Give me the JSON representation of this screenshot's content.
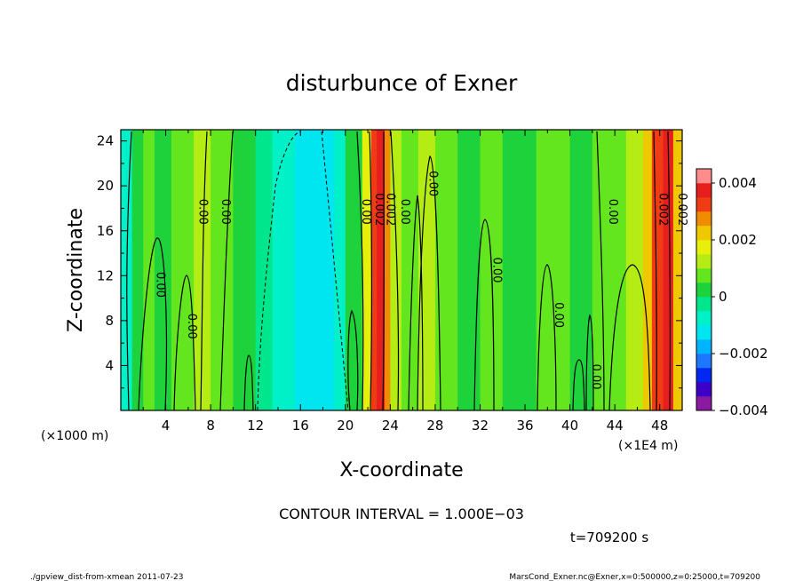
{
  "chart_data": {
    "type": "heatmap",
    "title": "disturbunce of Exner",
    "xlabel": "X-coordinate",
    "ylabel": "Z-coordinate",
    "x_unit_label": "(×1000 m)",
    "x_unit_label_right": "(×1E4 m)",
    "xlim": [
      0,
      50
    ],
    "ylim": [
      0,
      25
    ],
    "x_ticks": [
      "4",
      "8",
      "12",
      "16",
      "20",
      "24",
      "28",
      "32",
      "36",
      "40",
      "44",
      "48"
    ],
    "y_ticks": [
      "4",
      "8",
      "12",
      "16",
      "20",
      "24"
    ],
    "colorbar": {
      "ticks": [
        "0.004",
        "0.002",
        "0",
        "−0.002",
        "−0.004"
      ],
      "tick_values": [
        0.004,
        0.002,
        0,
        -0.002,
        -0.004
      ],
      "levels": [
        {
          "min": -0.004,
          "max": -0.0035,
          "color": "#8c1aa0"
        },
        {
          "min": -0.0035,
          "max": -0.003,
          "color": "#3d00c8"
        },
        {
          "min": -0.003,
          "max": -0.0025,
          "color": "#0028f0"
        },
        {
          "min": -0.0025,
          "max": -0.002,
          "color": "#1e78ff"
        },
        {
          "min": -0.002,
          "max": -0.0015,
          "color": "#00b4ff"
        },
        {
          "min": -0.0015,
          "max": -0.001,
          "color": "#00e6f0"
        },
        {
          "min": -0.001,
          "max": -0.0005,
          "color": "#00f0c8"
        },
        {
          "min": -0.0005,
          "max": 0.0,
          "color": "#00e68c"
        },
        {
          "min": 0.0,
          "max": 0.0005,
          "color": "#1ed23c"
        },
        {
          "min": 0.0005,
          "max": 0.001,
          "color": "#64e61e"
        },
        {
          "min": 0.001,
          "max": 0.0015,
          "color": "#b4ec14"
        },
        {
          "min": 0.0015,
          "max": 0.002,
          "color": "#e6f00a"
        },
        {
          "min": 0.002,
          "max": 0.0025,
          "color": "#f0c800"
        },
        {
          "min": 0.0025,
          "max": 0.003,
          "color": "#f08c00"
        },
        {
          "min": 0.003,
          "max": 0.0035,
          "color": "#f03c14"
        },
        {
          "min": 0.0035,
          "max": 0.004,
          "color": "#e61e1e"
        },
        {
          "min": 0.004,
          "max": 0.0045,
          "color": "#ff8c8c"
        }
      ]
    },
    "columns": [
      {
        "x0": 0.0,
        "x1": 1.0,
        "value": -0.0007
      },
      {
        "x0": 1.0,
        "x1": 2.0,
        "value": 0.0002
      },
      {
        "x0": 2.0,
        "x1": 3.0,
        "value": 0.0006
      },
      {
        "x0": 3.0,
        "x1": 4.5,
        "value": 0.0002
      },
      {
        "x0": 4.5,
        "x1": 6.5,
        "value": 0.0007
      },
      {
        "x0": 6.5,
        "x1": 8.0,
        "value": 0.0013
      },
      {
        "x0": 8.0,
        "x1": 10.0,
        "value": 0.0006
      },
      {
        "x0": 10.0,
        "x1": 12.0,
        "value": 0.0002
      },
      {
        "x0": 12.0,
        "x1": 13.5,
        "value": -0.0003
      },
      {
        "x0": 13.5,
        "x1": 15.5,
        "value": -0.0008
      },
      {
        "x0": 15.5,
        "x1": 19.0,
        "value": -0.0013
      },
      {
        "x0": 19.0,
        "x1": 20.0,
        "value": -0.0006
      },
      {
        "x0": 20.0,
        "x1": 21.5,
        "value": 0.0003
      },
      {
        "x0": 21.5,
        "x1": 22.3,
        "value": 0.0018
      },
      {
        "x0": 22.3,
        "x1": 22.8,
        "value": 0.0033
      },
      {
        "x0": 22.8,
        "x1": 23.5,
        "value": 0.0038
      },
      {
        "x0": 23.5,
        "x1": 24.0,
        "value": 0.0028
      },
      {
        "x0": 24.0,
        "x1": 25.0,
        "value": 0.0012
      },
      {
        "x0": 25.0,
        "x1": 26.5,
        "value": 0.0006
      },
      {
        "x0": 26.5,
        "x1": 28.0,
        "value": 0.0012
      },
      {
        "x0": 28.0,
        "x1": 30.0,
        "value": 0.0008
      },
      {
        "x0": 30.0,
        "x1": 32.0,
        "value": 0.0003
      },
      {
        "x0": 32.0,
        "x1": 34.0,
        "value": 0.0007
      },
      {
        "x0": 34.0,
        "x1": 37.0,
        "value": 0.0002
      },
      {
        "x0": 37.0,
        "x1": 40.0,
        "value": 0.0007
      },
      {
        "x0": 40.0,
        "x1": 42.0,
        "value": 0.0002
      },
      {
        "x0": 42.0,
        "x1": 45.0,
        "value": 0.0008
      },
      {
        "x0": 45.0,
        "x1": 46.5,
        "value": 0.0014
      },
      {
        "x0": 46.5,
        "x1": 47.3,
        "value": 0.0022
      },
      {
        "x0": 47.3,
        "x1": 48.3,
        "value": 0.0032
      },
      {
        "x0": 48.3,
        "x1": 49.2,
        "value": 0.0037
      },
      {
        "x0": 49.2,
        "x1": 50.0,
        "value": 0.0024
      }
    ],
    "contour_labels": [
      {
        "x": 3.2,
        "z": 11.2,
        "text": "0.00"
      },
      {
        "x": 6.0,
        "z": 7.5,
        "text": "0.00"
      },
      {
        "x": 7.0,
        "z": 17.7,
        "text": "0.00"
      },
      {
        "x": 9.0,
        "z": 17.7,
        "text": "0.00"
      },
      {
        "x": 21.5,
        "z": 17.7,
        "text": "0.00"
      },
      {
        "x": 22.7,
        "z": 17.9,
        "text": "0.002"
      },
      {
        "x": 23.7,
        "z": 17.9,
        "text": "0.002"
      },
      {
        "x": 25.0,
        "z": 17.7,
        "text": "0.00"
      },
      {
        "x": 27.5,
        "z": 20.2,
        "text": "0.00"
      },
      {
        "x": 33.2,
        "z": 12.5,
        "text": "0.00"
      },
      {
        "x": 38.7,
        "z": 8.5,
        "text": "0.00"
      },
      {
        "x": 42.0,
        "z": 3.0,
        "text": "0.00"
      },
      {
        "x": 43.5,
        "z": 17.7,
        "text": "0.00"
      },
      {
        "x": 48.0,
        "z": 17.9,
        "text": "0.002"
      },
      {
        "x": 49.7,
        "z": 17.9,
        "text": "0.002"
      }
    ]
  },
  "annotations": {
    "contour_interval": "CONTOUR INTERVAL = 1.000E−03",
    "time": "t=709200 s",
    "footer_left": "./gpview_dist-from-xmean  2011-07-23",
    "footer_right": "MarsCond_Exner.nc@Exner,x=0:500000,z=0:25000,t=709200"
  }
}
